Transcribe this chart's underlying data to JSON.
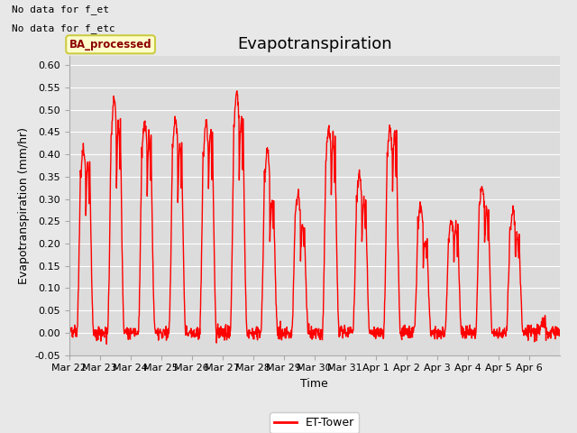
{
  "title": "Evapotranspiration",
  "xlabel": "Time",
  "ylabel": "Evapotranspiration (mm/hr)",
  "ylim": [
    -0.05,
    0.62
  ],
  "yticks": [
    -0.05,
    0.0,
    0.05,
    0.1,
    0.15,
    0.2,
    0.25,
    0.3,
    0.35,
    0.4,
    0.45,
    0.5,
    0.55,
    0.6
  ],
  "line_color": "red",
  "line_width": 1.0,
  "background_color": "#e8e8e8",
  "plot_bg_color": "#dcdcdc",
  "legend_label": "ET-Tower",
  "annotation1": "No data for f_et",
  "annotation2": "No data for f_etc",
  "ba_label": "BA_processed",
  "xtick_labels": [
    "Mar 22",
    "Mar 23",
    "Mar 24",
    "Mar 25",
    "Mar 26",
    "Mar 27",
    "Mar 28",
    "Mar 29",
    "Mar 30",
    "Mar 31",
    "Apr 1",
    "Apr 2",
    "Apr 3",
    "Apr 4",
    "Apr 5",
    "Apr 6"
  ],
  "title_fontsize": 13,
  "label_fontsize": 9,
  "tick_fontsize": 8,
  "daily_peaks": [
    0.41,
    0.52,
    0.47,
    0.48,
    0.47,
    0.54,
    0.41,
    0.31,
    0.46,
    0.35,
    0.46,
    0.28,
    0.25,
    0.33,
    0.27,
    0.02
  ],
  "daily_peaks2": [
    0.38,
    0.47,
    0.44,
    0.42,
    0.46,
    0.48,
    0.29,
    0.24,
    0.44,
    0.3,
    0.45,
    0.21,
    0.24,
    0.28,
    0.22,
    0.0
  ]
}
